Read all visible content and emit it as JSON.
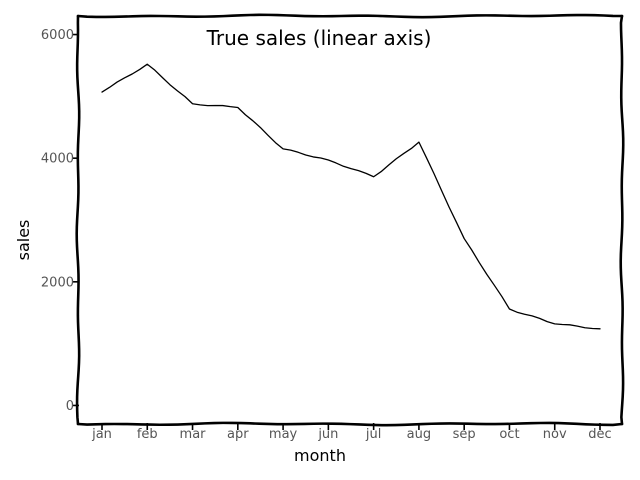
{
  "chart_data": {
    "type": "line",
    "title": "True sales (linear axis)",
    "xlabel": "month",
    "ylabel": "sales",
    "categories": [
      "jan",
      "feb",
      "mar",
      "apr",
      "may",
      "jun",
      "jul",
      "aug",
      "sep",
      "oct",
      "nov",
      "dec"
    ],
    "series": [
      {
        "values": [
          5070,
          5520,
          4880,
          4820,
          4150,
          3970,
          3700,
          4260,
          2700,
          1560,
          1320,
          1240
        ]
      }
    ],
    "ylim": [
      -300,
      6300
    ],
    "yticks": [
      0,
      2000,
      4000,
      6000
    ],
    "yticklabels": [
      "0",
      "2000",
      "4000",
      "6000"
    ],
    "grid": false,
    "style": "xkcd",
    "colors": {
      "line": "#000000",
      "frame": "#000000",
      "tick_text": "#555555"
    }
  }
}
